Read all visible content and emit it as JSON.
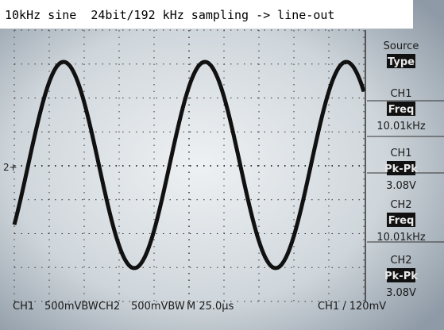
{
  "caption": "10kHz sine  24bit/192 kHz sampling -> line-out",
  "marker": "2+",
  "menu": [
    {
      "channel": "Source",
      "label": "Type",
      "value": null
    },
    {
      "channel": "CH1",
      "label": "Freq",
      "value": "10.01kHz"
    },
    {
      "channel": "CH1",
      "label": "Pk-Pk",
      "value": "3.08V"
    },
    {
      "channel": "CH2",
      "label": "Freq",
      "value": "10.01kHz"
    },
    {
      "channel": "CH2",
      "label": "Pk-Pk",
      "value": "3.08V"
    }
  ],
  "status": {
    "ch1": "CH1",
    "ch1_scale": "500mVBW",
    "ch2": "CH2",
    "ch2_scale": "500mVBW",
    "timebase": "M 25.0µs",
    "trigger": "CH1 / 120mV"
  }
}
